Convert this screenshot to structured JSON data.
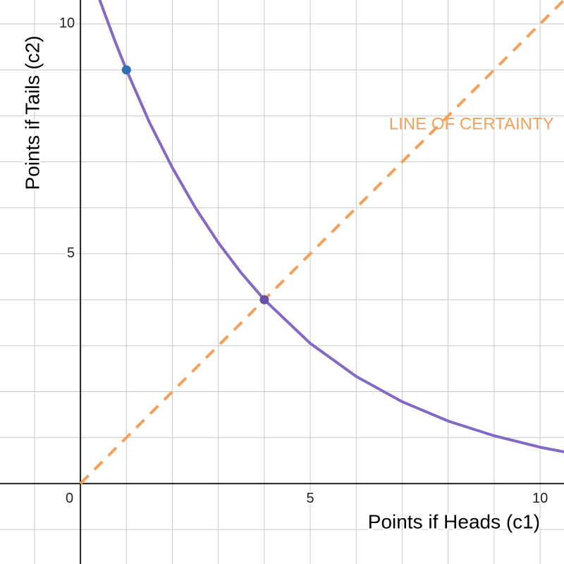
{
  "chart_data": {
    "type": "line",
    "xlabel": "Points if Heads (c1)",
    "ylabel": "Points if Tails (c2)",
    "annotations": [
      {
        "text": "LINE OF CERTAINTY",
        "x": 10.3,
        "y": 7.8,
        "color": "#f5a05a"
      }
    ],
    "xlim": [
      -1.75,
      10.52
    ],
    "ylim": [
      -1.75,
      10.52
    ],
    "xticks": [
      0,
      5,
      10
    ],
    "yticks": [
      5,
      10
    ],
    "x_gridlines": [
      -1,
      1,
      2,
      3,
      4,
      5,
      6,
      7,
      8,
      9,
      10
    ],
    "y_gridlines": [
      -1,
      1,
      2,
      3,
      4,
      5,
      6,
      7,
      8,
      9,
      10
    ],
    "grid": true,
    "series": [
      {
        "color": "#8469c4",
        "mode": "line",
        "dashed": false,
        "x": [
          0.42,
          0.5,
          0.75,
          1,
          1.5,
          2,
          2.5,
          3,
          3.5,
          4,
          5,
          6,
          7,
          8,
          9,
          10,
          10.52
        ],
        "values": [
          10.52,
          10.3,
          9.63,
          9,
          7.86,
          6.87,
          6,
          5.24,
          4.58,
          4,
          3.05,
          2.33,
          1.78,
          1.36,
          1.04,
          0.79,
          0.69
        ]
      },
      {
        "color": "#f5a05a",
        "mode": "line",
        "dashed": true,
        "x": [
          0,
          10.52
        ],
        "values": [
          0,
          10.52
        ]
      },
      {
        "color": "#2d70b3",
        "mode": "markers",
        "x": [
          1
        ],
        "values": [
          9
        ]
      },
      {
        "color": "#6a4fa8",
        "mode": "markers",
        "x": [
          4
        ],
        "values": [
          4
        ]
      }
    ]
  }
}
